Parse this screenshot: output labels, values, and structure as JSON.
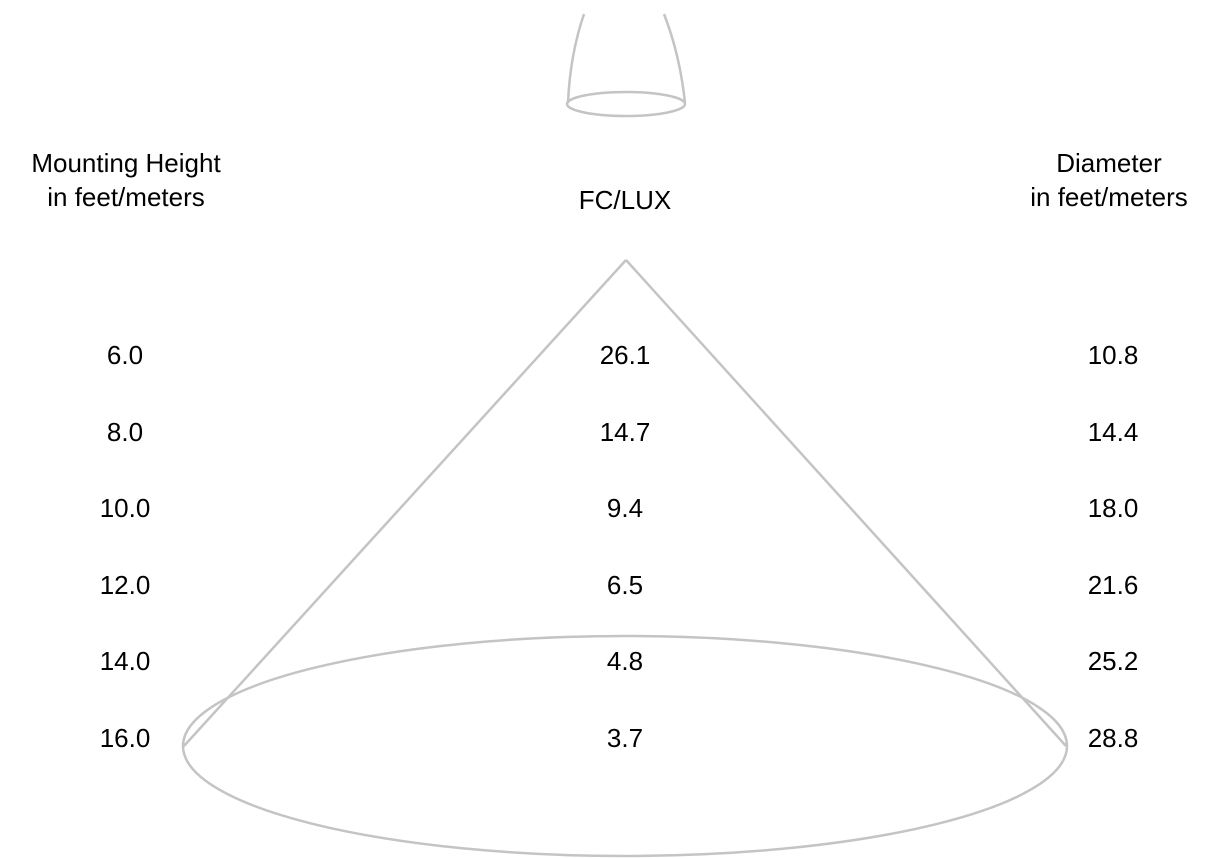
{
  "headers": {
    "mounting_height": [
      "Mounting Height",
      "in feet/meters"
    ],
    "fc_lux": "FC/LUX",
    "diameter": [
      "Diameter",
      "in feet/meters"
    ]
  },
  "rows": [
    {
      "height": "6.0",
      "fc": "26.1",
      "diameter": "10.8"
    },
    {
      "height": "8.0",
      "fc": "14.7",
      "diameter": "14.4"
    },
    {
      "height": "10.0",
      "fc": "9.4",
      "diameter": "18.0"
    },
    {
      "height": "12.0",
      "fc": "6.5",
      "diameter": "21.6"
    },
    {
      "height": "14.0",
      "fc": "4.8",
      "diameter": "25.2"
    },
    {
      "height": "16.0",
      "fc": "3.7",
      "diameter": "28.8"
    }
  ],
  "colors": {
    "outline": "#c4c4c4",
    "text": "#000000"
  },
  "icons": {
    "fixture": "light-fixture-icon"
  }
}
